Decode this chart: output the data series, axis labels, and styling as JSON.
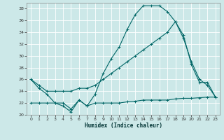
{
  "xlabel": "Humidex (Indice chaleur)",
  "bg_color": "#cce8e8",
  "line_color": "#006666",
  "grid_color": "#ffffff",
  "xlim": [
    -0.5,
    23.5
  ],
  "ylim": [
    20,
    39
  ],
  "yticks": [
    20,
    22,
    24,
    26,
    28,
    30,
    32,
    34,
    36,
    38
  ],
  "xticks": [
    0,
    1,
    2,
    3,
    4,
    5,
    6,
    7,
    8,
    9,
    10,
    11,
    12,
    13,
    14,
    15,
    16,
    17,
    18,
    19,
    20,
    21,
    22,
    23
  ],
  "line1_x": [
    0,
    1,
    2,
    3,
    4,
    5,
    6,
    7,
    8,
    9,
    10,
    11,
    12,
    13,
    14,
    15,
    16,
    17,
    18,
    19,
    20,
    21,
    22,
    23
  ],
  "line1_y": [
    26,
    24.5,
    23.5,
    22,
    21.5,
    20.5,
    22.5,
    21.5,
    23.5,
    27,
    29.5,
    31.5,
    34.5,
    37,
    38.5,
    38.5,
    38.5,
    37.5,
    35.8,
    33.5,
    28.5,
    25.5,
    25.5,
    23
  ],
  "line2_x": [
    0,
    1,
    2,
    3,
    4,
    5,
    6,
    7,
    8,
    9,
    10,
    11,
    12,
    13,
    14,
    15,
    16,
    17,
    18,
    19,
    20,
    21,
    22,
    23
  ],
  "line2_y": [
    26,
    25,
    24,
    24,
    24,
    24,
    24.5,
    24.5,
    25,
    26,
    27,
    28,
    29,
    30,
    31,
    32,
    33,
    34,
    35.8,
    33,
    29,
    26,
    25,
    23
  ],
  "line3_x": [
    0,
    1,
    2,
    3,
    4,
    5,
    6,
    7,
    8,
    9,
    10,
    11,
    12,
    13,
    14,
    15,
    16,
    17,
    18,
    19,
    20,
    21,
    22,
    23
  ],
  "line3_y": [
    22,
    22,
    22,
    22,
    22,
    21.0,
    22.5,
    21.5,
    22,
    22,
    22,
    22,
    22.2,
    22.3,
    22.5,
    22.5,
    22.5,
    22.5,
    22.7,
    22.8,
    22.8,
    22.9,
    23,
    23
  ]
}
